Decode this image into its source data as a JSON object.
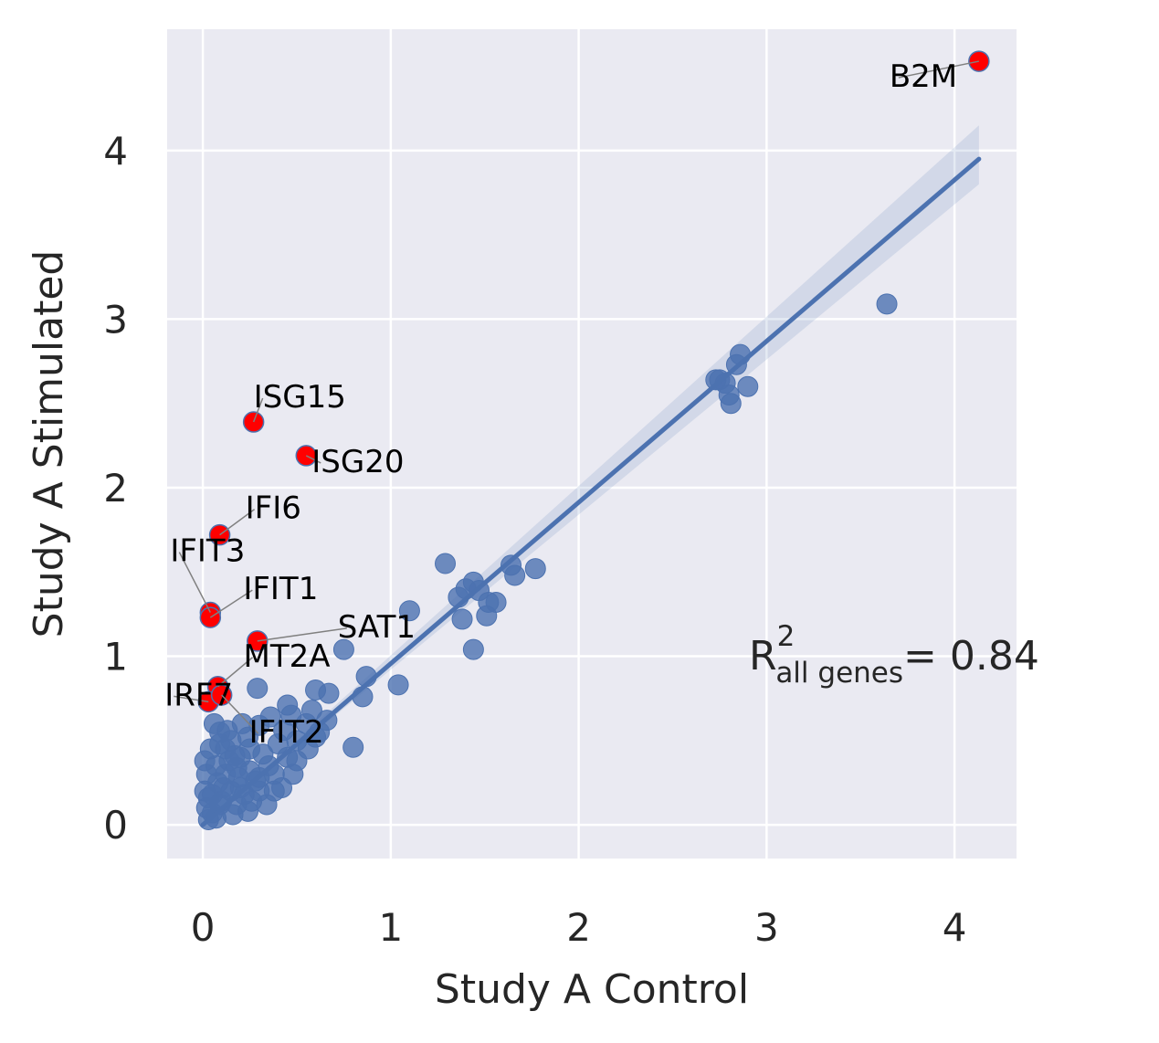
{
  "chart_data": {
    "type": "scatter",
    "xlabel": "Study A Control",
    "ylabel": "Study A Stimulated",
    "xlim": [
      -0.19,
      4.33
    ],
    "ylim": [
      -0.2,
      4.72
    ],
    "xticks": [
      0,
      1,
      2,
      3,
      4
    ],
    "yticks": [
      0,
      1,
      2,
      3,
      4
    ],
    "grid": true,
    "colors": {
      "background": "#EAEAF2",
      "grid": "#FFFFFF",
      "points": "#4C72B0",
      "highlight": "#FF0000",
      "regression": "#4C72B0",
      "annotation_arrow": "#808080"
    },
    "regression": {
      "x": [
        0,
        4.13
      ],
      "y": [
        0.0,
        3.95
      ],
      "ci_start": [
        0.0,
        0.0
      ],
      "ci_end": [
        3.8,
        4.15
      ]
    },
    "annotation": {
      "r2_base": "R",
      "r2_sup": "2",
      "r2_sub": "all genes",
      "r2_value": "= 0.84"
    },
    "highlighted_genes": [
      {
        "name": "B2M",
        "x": 4.13,
        "y": 4.53
      },
      {
        "name": "ISG15",
        "x": 0.27,
        "y": 2.39
      },
      {
        "name": "ISG20",
        "x": 0.55,
        "y": 2.19
      },
      {
        "name": "IFI6",
        "x": 0.09,
        "y": 1.72
      },
      {
        "name": "IFIT3",
        "x": 0.04,
        "y": 1.26
      },
      {
        "name": "IFIT1",
        "x": 0.04,
        "y": 1.23
      },
      {
        "name": "SAT1",
        "x": 0.29,
        "y": 1.09
      },
      {
        "name": "MT2A",
        "x": 0.08,
        "y": 0.82
      },
      {
        "name": "IRF7",
        "x": 0.03,
        "y": 0.73
      },
      {
        "name": "IFIT2",
        "x": 0.1,
        "y": 0.77
      }
    ],
    "points": [
      [
        3.64,
        3.09
      ],
      [
        2.86,
        2.79
      ],
      [
        2.84,
        2.73
      ],
      [
        2.75,
        2.64
      ],
      [
        2.78,
        2.62
      ],
      [
        2.73,
        2.64
      ],
      [
        2.9,
        2.6
      ],
      [
        2.8,
        2.55
      ],
      [
        2.81,
        2.5
      ],
      [
        1.77,
        1.52
      ],
      [
        1.64,
        1.54
      ],
      [
        1.66,
        1.48
      ],
      [
        1.56,
        1.32
      ],
      [
        1.29,
        1.55
      ],
      [
        1.44,
        1.44
      ],
      [
        1.4,
        1.4
      ],
      [
        1.36,
        1.35
      ],
      [
        1.47,
        1.39
      ],
      [
        1.52,
        1.32
      ],
      [
        1.51,
        1.24
      ],
      [
        1.38,
        1.22
      ],
      [
        1.44,
        1.04
      ],
      [
        1.1,
        1.27
      ],
      [
        0.75,
        1.04
      ],
      [
        1.04,
        0.83
      ],
      [
        0.87,
        0.88
      ],
      [
        0.85,
        0.76
      ],
      [
        0.6,
        0.8
      ],
      [
        0.67,
        0.78
      ],
      [
        0.8,
        0.46
      ],
      [
        0.45,
        0.71
      ],
      [
        0.47,
        0.65
      ],
      [
        0.36,
        0.64
      ],
      [
        0.3,
        0.59
      ],
      [
        0.55,
        0.6
      ],
      [
        0.29,
        0.81
      ],
      [
        0.5,
        0.5
      ],
      [
        0.4,
        0.48
      ],
      [
        0.6,
        0.52
      ],
      [
        0.45,
        0.4
      ],
      [
        0.35,
        0.35
      ],
      [
        0.48,
        0.3
      ],
      [
        0.3,
        0.28
      ],
      [
        0.25,
        0.32
      ],
      [
        0.2,
        0.22
      ],
      [
        0.1,
        0.14
      ],
      [
        0.05,
        0.07
      ],
      [
        0.15,
        0.2
      ],
      [
        0.22,
        0.18
      ],
      [
        0.12,
        0.3
      ],
      [
        0.08,
        0.25
      ],
      [
        0.05,
        0.18
      ],
      [
        0.18,
        0.12
      ],
      [
        0.03,
        0.03
      ],
      [
        0.07,
        0.04
      ],
      [
        0.02,
        0.1
      ],
      [
        0.3,
        0.2
      ],
      [
        0.38,
        0.3
      ],
      [
        0.42,
        0.22
      ],
      [
        0.2,
        0.4
      ],
      [
        0.12,
        0.45
      ],
      [
        0.06,
        0.6
      ],
      [
        0.09,
        0.55
      ],
      [
        0.15,
        0.5
      ],
      [
        0.25,
        0.45
      ],
      [
        0.02,
        0.3
      ],
      [
        0.01,
        0.38
      ],
      [
        0.14,
        0.38
      ],
      [
        0.34,
        0.12
      ],
      [
        0.24,
        0.08
      ],
      [
        0.16,
        0.06
      ],
      [
        0.01,
        0.2
      ],
      [
        0.03,
        0.16
      ],
      [
        0.28,
        0.26
      ],
      [
        0.5,
        0.38
      ],
      [
        0.56,
        0.45
      ],
      [
        0.62,
        0.55
      ],
      [
        0.66,
        0.62
      ],
      [
        0.58,
        0.68
      ],
      [
        0.18,
        0.34
      ],
      [
        0.11,
        0.22
      ],
      [
        0.09,
        0.12
      ],
      [
        0.26,
        0.14
      ],
      [
        0.19,
        0.28
      ],
      [
        0.04,
        0.45
      ],
      [
        0.13,
        0.56
      ],
      [
        0.24,
        0.52
      ],
      [
        0.32,
        0.42
      ],
      [
        0.43,
        0.56
      ],
      [
        0.38,
        0.2
      ],
      [
        0.07,
        0.35
      ],
      [
        0.21,
        0.6
      ],
      [
        0.09,
        0.48
      ],
      [
        0.17,
        0.41
      ]
    ]
  }
}
